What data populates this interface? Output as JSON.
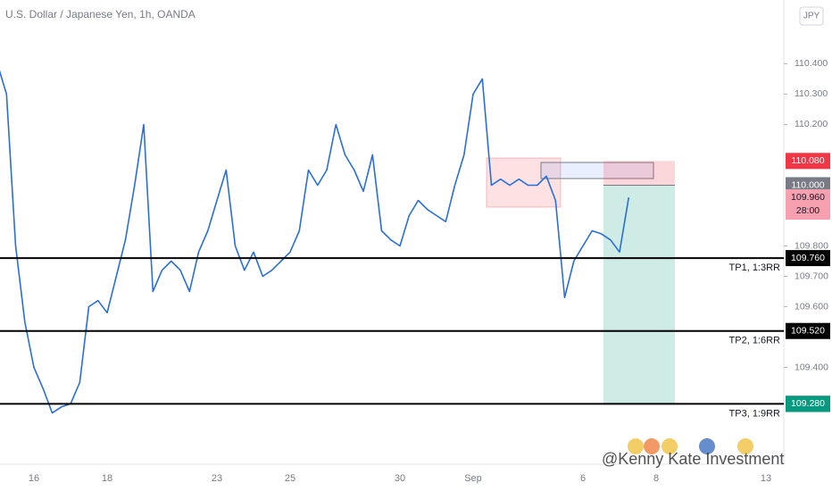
{
  "header": {
    "title": "U.S. Dollar / Japanese Yen, 1h, OANDA",
    "currency": "JPY"
  },
  "chart_data": {
    "type": "line",
    "color": "#2a6fd6",
    "categories": [
      null,
      null,
      null,
      null,
      "16",
      null,
      null,
      null,
      null,
      null,
      null,
      null,
      "18",
      null,
      null,
      null,
      null,
      null,
      null,
      null,
      null,
      null,
      null,
      null,
      "23",
      null,
      null,
      null,
      null,
      null,
      null,
      null,
      "25",
      null,
      null,
      null,
      null,
      null,
      null,
      null,
      null,
      null,
      null,
      null,
      "30",
      null,
      null,
      null,
      null,
      null,
      null,
      null,
      "Sep",
      null,
      null,
      null,
      null,
      null,
      null,
      null,
      null,
      null,
      null,
      null,
      "6",
      null,
      null,
      null,
      null,
      null,
      null,
      null,
      "8",
      null,
      null,
      null,
      null,
      null,
      null,
      null,
      null,
      null,
      null,
      null,
      "13"
    ],
    "values": [
      110.4,
      110.3,
      109.8,
      109.55,
      109.4,
      109.33,
      109.25,
      109.27,
      109.28,
      109.35,
      109.6,
      109.62,
      109.58,
      109.7,
      109.82,
      110.0,
      110.2,
      109.65,
      109.72,
      109.75,
      109.72,
      109.65,
      109.78,
      109.85,
      109.95,
      110.05,
      109.8,
      109.72,
      109.78,
      109.7,
      109.72,
      109.75,
      109.78,
      109.85,
      110.05,
      110.0,
      110.05,
      110.2,
      110.1,
      110.05,
      109.98,
      110.1,
      109.85,
      109.82,
      109.8,
      109.9,
      109.95,
      109.92,
      109.9,
      109.88,
      110.0,
      110.1,
      110.3,
      110.35,
      110.0,
      110.02,
      110.0,
      110.02,
      110.0,
      110.0,
      110.03,
      109.95,
      109.63,
      109.75,
      109.8,
      109.85,
      109.84,
      109.82,
      109.78,
      109.96,
      null,
      null,
      null,
      null,
      null,
      null,
      null,
      null,
      null,
      null,
      null,
      null,
      null,
      null,
      null
    ],
    "ylim": [
      109.09,
      110.61
    ],
    "yticks": [
      {
        "value": 110.4,
        "label": "110.400"
      },
      {
        "value": 110.3,
        "label": "110.300"
      },
      {
        "value": 110.2,
        "label": "110.200"
      },
      {
        "value": 109.8,
        "label": "109.800"
      },
      {
        "value": 109.7,
        "label": "109.700"
      },
      {
        "value": 109.6,
        "label": "109.600"
      },
      {
        "value": 109.4,
        "label": "109.400"
      }
    ],
    "levels": [
      {
        "value": 109.76,
        "label": "109.760",
        "note": "TP1, 1:3RR"
      },
      {
        "value": 109.52,
        "label": "109.520",
        "note": "TP2, 1:6RR"
      },
      {
        "value": 109.28,
        "label": "109.280",
        "note": "TP3, 1:9RR"
      }
    ],
    "position": {
      "stop": {
        "value": 110.08,
        "label": "110.080",
        "color": "#f23645"
      },
      "entry": {
        "value": 110.0,
        "label": "110.000",
        "color": "#787b86"
      },
      "target": {
        "value": 109.28,
        "label": "109.280",
        "color": "#089981"
      }
    },
    "current_price": {
      "value": 109.96,
      "label": "109.960",
      "countdown": "28:00",
      "color": "#f7a1b0"
    }
  },
  "watermark": "@Kenny Kate Investment"
}
